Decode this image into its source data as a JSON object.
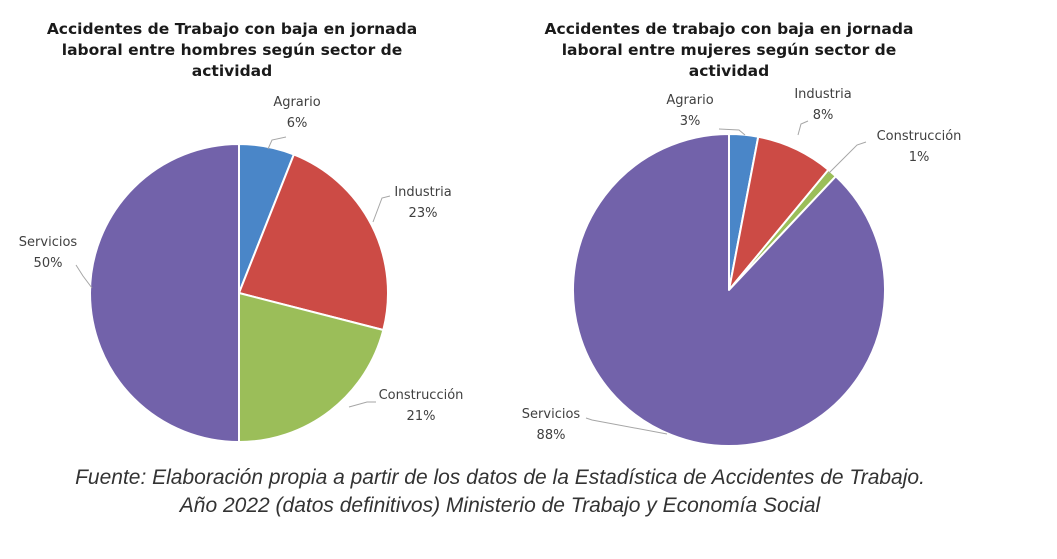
{
  "chart_data": [
    {
      "type": "pie",
      "title_lines": [
        "Accidentes de Trabajo con baja en jornada",
        "laboral entre hombres según sector de",
        "actividad"
      ],
      "categories": [
        "Agrario",
        "Industria",
        "Construcción",
        "Servicios"
      ],
      "values": [
        6,
        23,
        21,
        50
      ],
      "labels": [
        "6%",
        "23%",
        "21%",
        "50%"
      ],
      "colors": [
        "#4a86c8",
        "#cc4b45",
        "#9bbe59",
        "#7262aa"
      ]
    },
    {
      "type": "pie",
      "title_lines": [
        "Accidentes de trabajo con baja en jornada",
        "laboral entre mujeres según sector de",
        "actividad"
      ],
      "categories": [
        "Agrario",
        "Industria",
        "Construcción",
        "Servicios"
      ],
      "values": [
        3,
        8,
        1,
        88
      ],
      "labels": [
        "3%",
        "8%",
        "1%",
        "88%"
      ],
      "colors": [
        "#4a86c8",
        "#cc4b45",
        "#9bbe59",
        "#7262aa"
      ]
    }
  ],
  "caption": {
    "line1": "Fuente: Elaboración propia a partir de los datos de la Estadística de Accidentes de Trabajo.",
    "line2": "Año 2022 (datos definitivos) Ministerio de Trabajo y Economía Social"
  }
}
